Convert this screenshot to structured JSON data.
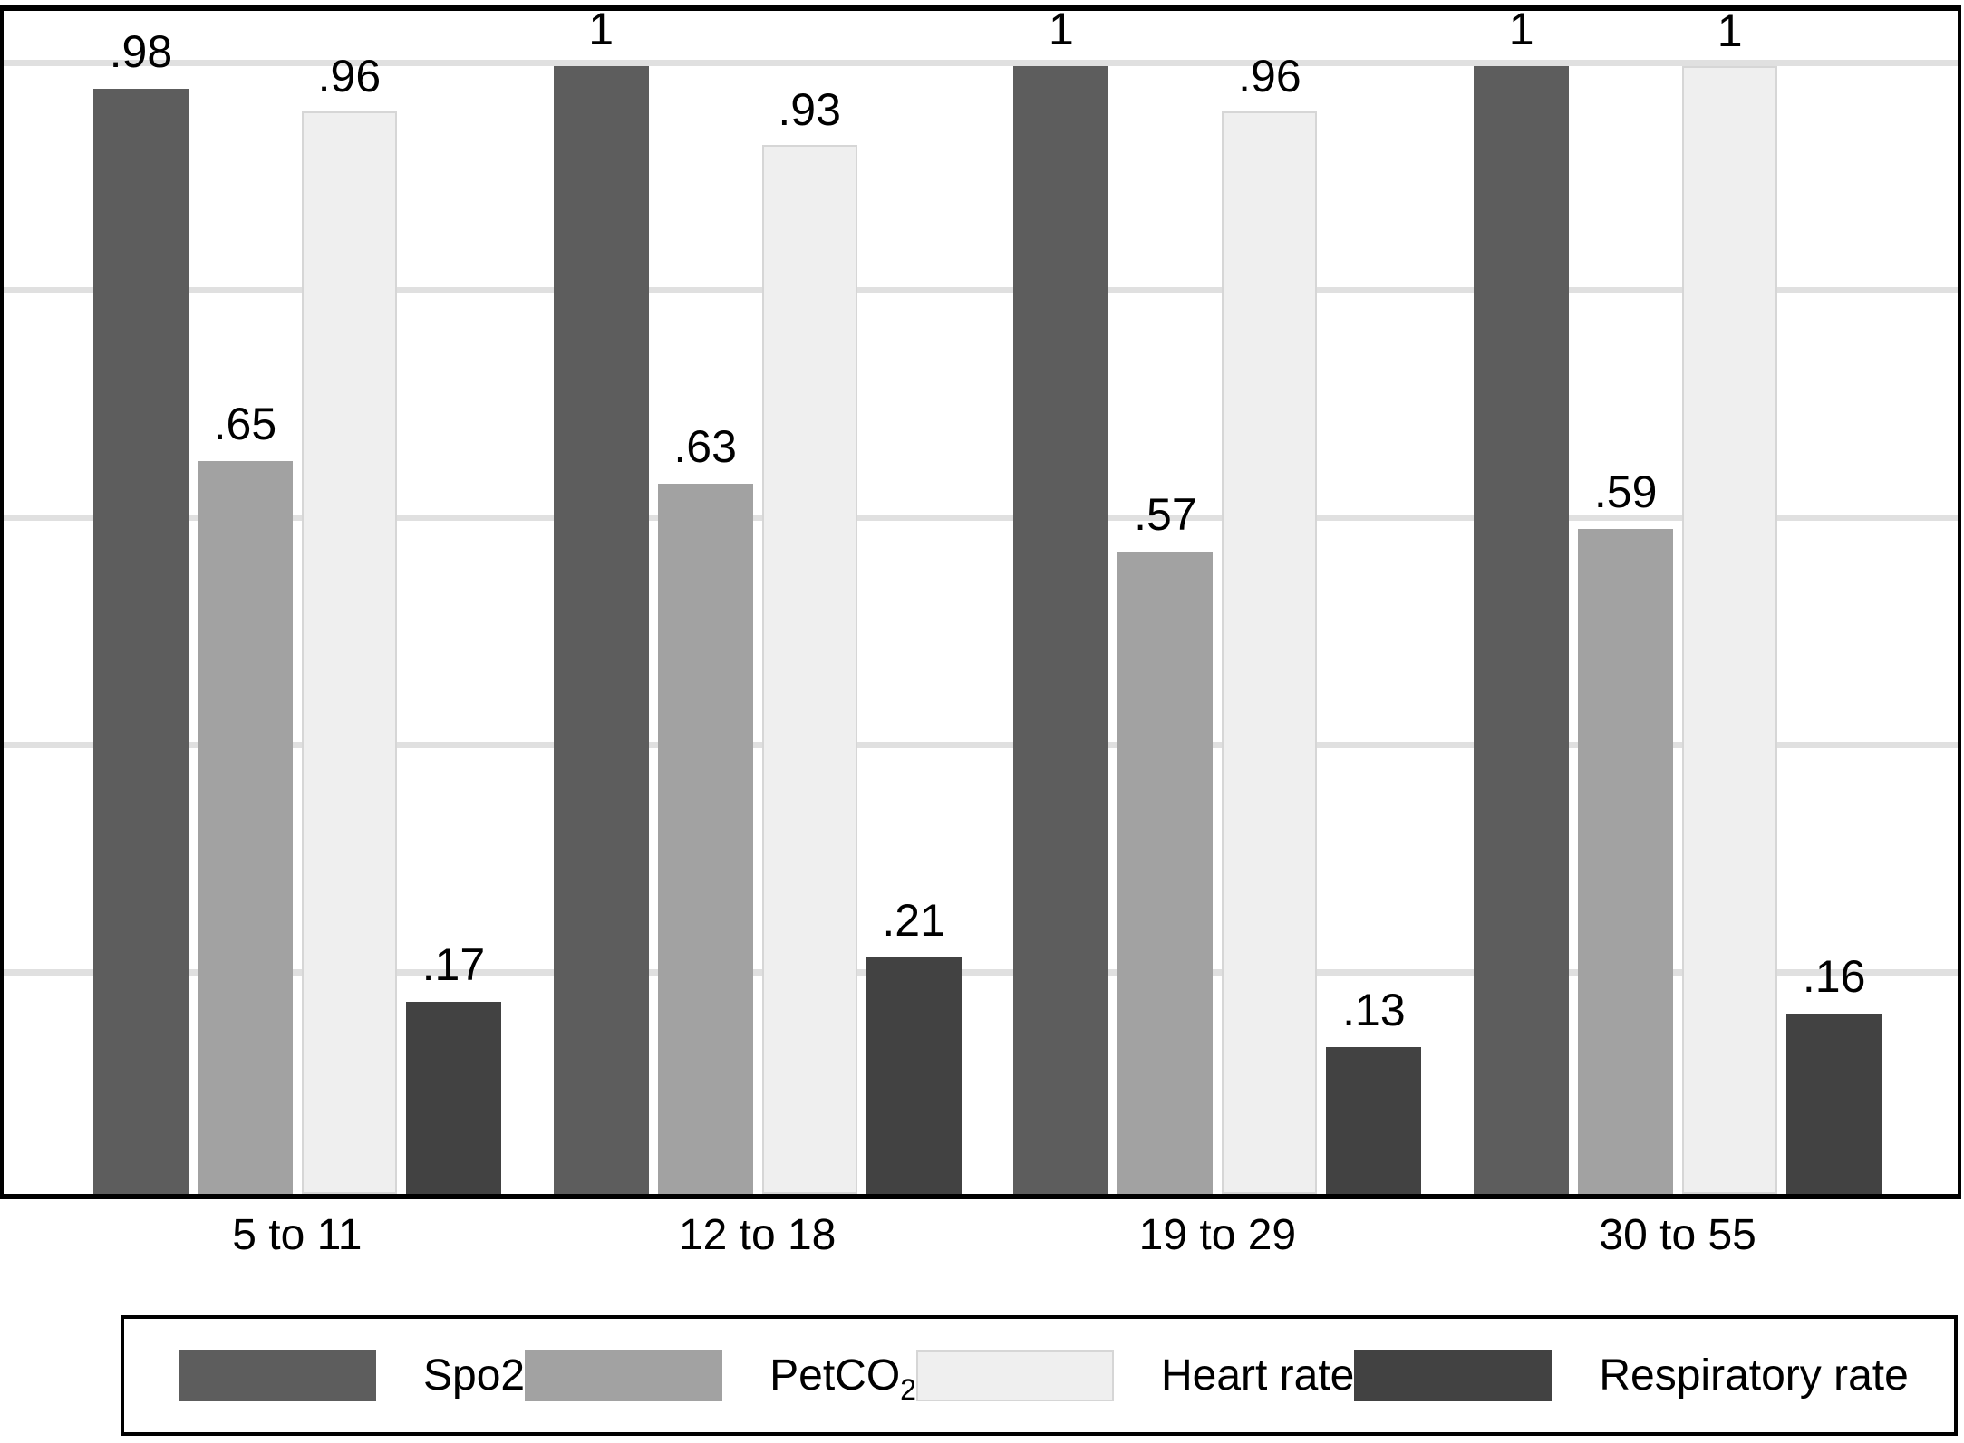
{
  "chart_data": {
    "type": "bar",
    "title": "",
    "xlabel": "",
    "ylabel": "",
    "categories": [
      "5 to 11",
      "12 to 18",
      "19 to 29",
      "30 to 55"
    ],
    "series": [
      {
        "name": "Spo2",
        "color": "#5d5d5d",
        "border_color": "",
        "values": [
          0.98,
          1.0,
          1.0,
          1.0
        ],
        "labels": [
          ".98",
          "1",
          "1",
          "1"
        ]
      },
      {
        "name": "PetCO2",
        "color": "#a2a2a2",
        "border_color": "",
        "values": [
          0.65,
          0.63,
          0.57,
          0.59
        ],
        "labels": [
          ".65",
          ".63",
          ".57",
          ".59"
        ]
      },
      {
        "name": "Heart rate",
        "color": "#efefef",
        "border_color": "#d6d6d6",
        "values": [
          0.96,
          0.93,
          0.96,
          1.0
        ],
        "labels": [
          ".96",
          ".93",
          ".96",
          "1"
        ]
      },
      {
        "name": "Respiratory rate",
        "color": "#424242",
        "border_color": "",
        "values": [
          0.17,
          0.21,
          0.13,
          0.16
        ],
        "labels": [
          ".17",
          ".21",
          ".13",
          ".16"
        ]
      }
    ],
    "ylim": [
      0,
      1.05
    ],
    "gridlines": [
      0.2,
      0.4,
      0.6,
      0.8,
      1.0
    ],
    "grid": true,
    "y_tick_labels_shown": false,
    "legend_position": "bottom"
  },
  "legend": {
    "items": [
      {
        "label": "Spo2",
        "sub": ""
      },
      {
        "label": "PetCO",
        "sub": "2"
      },
      {
        "label": "Heart rate",
        "sub": ""
      },
      {
        "label": "Respiratory rate",
        "sub": ""
      }
    ]
  },
  "colors": {
    "background": "#ffffff",
    "frame": "#000000",
    "gridline": "#e0e0e0",
    "text": "#000000"
  }
}
